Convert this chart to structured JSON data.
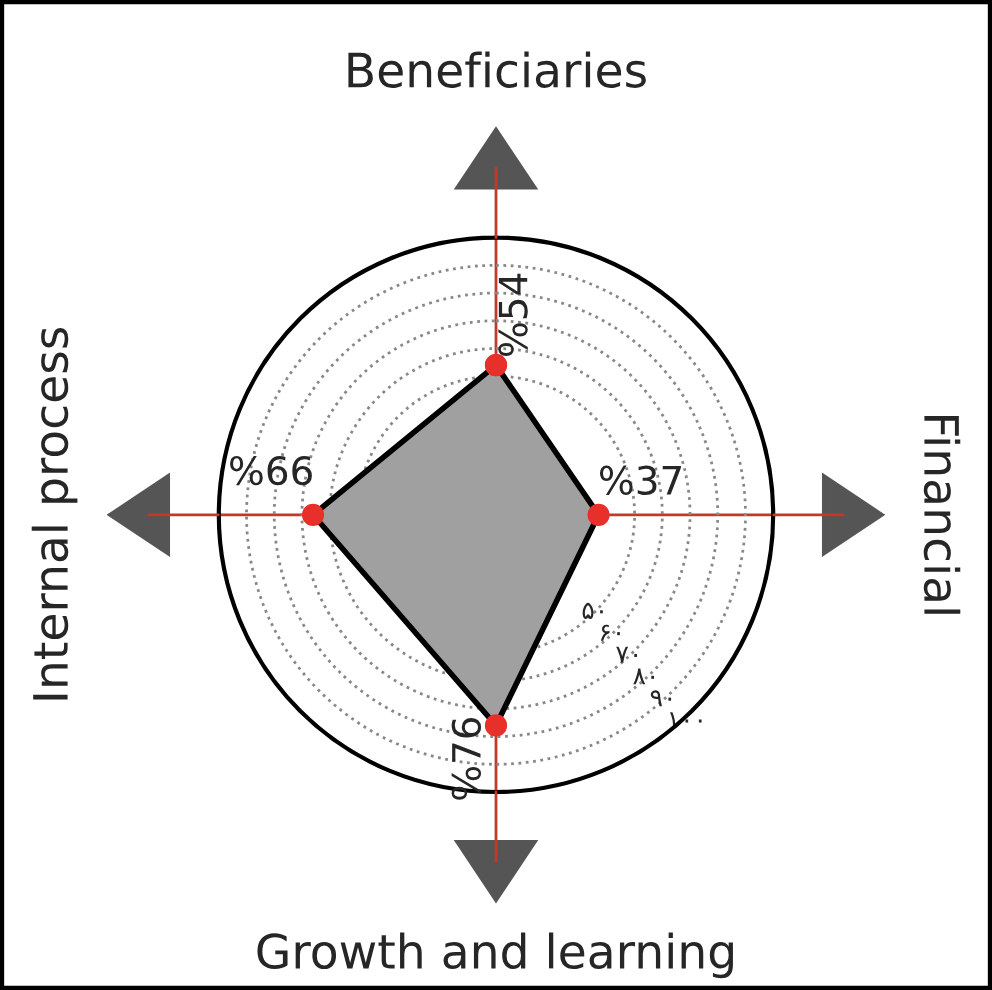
{
  "chart_data": {
    "type": "radar",
    "categories": [
      "Beneficiaries",
      "Financial",
      "Growth and learning",
      "Internal process"
    ],
    "series": [
      {
        "color": "#a0a0a0",
        "values": [
          54,
          37,
          76,
          66
        ],
        "value_labels": [
          "%54",
          "%37",
          "%76",
          "%66"
        ]
      }
    ],
    "ylim": [
      0,
      100
    ],
    "yticks": [
      {
        "value": 50,
        "label": "۵۰"
      },
      {
        "value": 60,
        "label": "۶۰"
      },
      {
        "value": 70,
        "label": "۷۰"
      },
      {
        "value": 80,
        "label": "۸۰"
      },
      {
        "value": 90,
        "label": "۹۰"
      },
      {
        "value": 100,
        "label": "۱۰۰"
      }
    ],
    "grid": true,
    "marker": "circle"
  }
}
